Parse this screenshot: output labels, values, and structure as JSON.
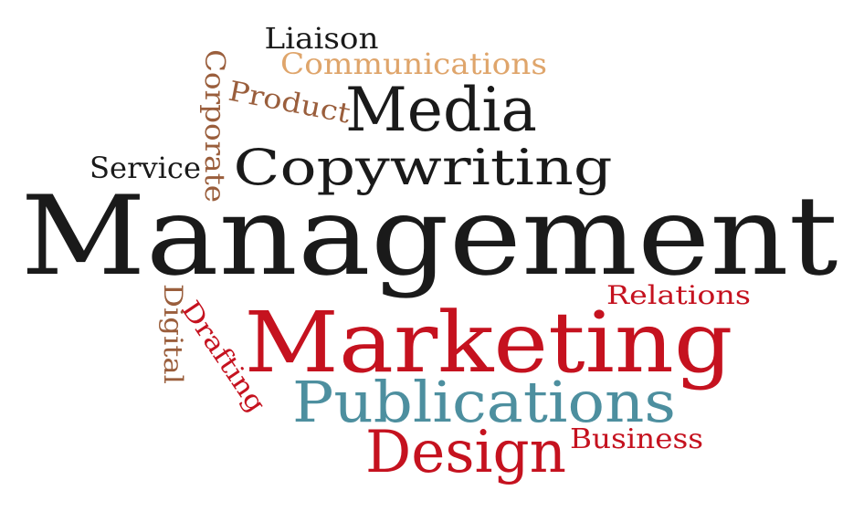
{
  "colors": {
    "black": "#1a1a1a",
    "red": "#c5121f",
    "teal": "#4d8f9f",
    "brown": "#9a5e3c",
    "tan": "#dfa56b"
  },
  "words": [
    {
      "text": "Management",
      "color": "black"
    },
    {
      "text": "Marketing",
      "color": "red"
    },
    {
      "text": "Publications",
      "color": "teal"
    },
    {
      "text": "Design",
      "color": "red"
    },
    {
      "text": "Copywriting",
      "color": "black"
    },
    {
      "text": "Media",
      "color": "black"
    },
    {
      "text": "Communications",
      "color": "tan"
    },
    {
      "text": "Liaison",
      "color": "black"
    },
    {
      "text": "Product",
      "color": "brown"
    },
    {
      "text": "Corporate",
      "color": "brown"
    },
    {
      "text": "Service",
      "color": "black"
    },
    {
      "text": "Relations",
      "color": "red"
    },
    {
      "text": "Digital",
      "color": "brown"
    },
    {
      "text": "Drafting",
      "color": "red"
    },
    {
      "text": "Business",
      "color": "red"
    }
  ]
}
